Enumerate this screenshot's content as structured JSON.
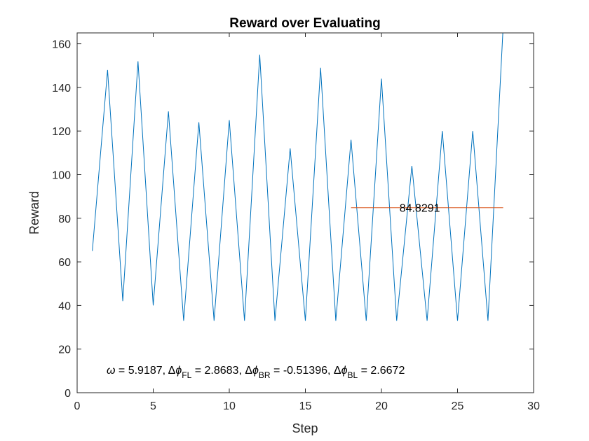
{
  "chart_data": {
    "type": "line",
    "title": "Reward over Evaluating",
    "xlabel": "Step",
    "ylabel": "Reward",
    "xlim": [
      0,
      30
    ],
    "ylim": [
      0,
      165
    ],
    "xticks": [
      0,
      5,
      10,
      15,
      20,
      25,
      30
    ],
    "yticks": [
      0,
      20,
      40,
      60,
      80,
      100,
      120,
      140,
      160
    ],
    "grid": false,
    "series": [
      {
        "color": "#0072BD",
        "x": [
          1,
          2,
          3,
          4,
          5,
          6,
          7,
          8,
          9,
          10,
          11,
          12,
          13,
          14,
          15,
          16,
          17,
          18,
          19,
          20,
          21,
          22,
          23,
          24,
          25,
          26,
          27,
          28
        ],
        "y": [
          65,
          148,
          42,
          152,
          40,
          129,
          33,
          124,
          33,
          125,
          33,
          155,
          33,
          112,
          33,
          149,
          33,
          116,
          33,
          144,
          33,
          104,
          33,
          120,
          33,
          120,
          33,
          168
        ]
      },
      {
        "color": "#D95319",
        "x": [
          18,
          28
        ],
        "y": [
          84.8291,
          84.8291
        ]
      }
    ],
    "annotations": {
      "mean_label": {
        "text": "84.8291",
        "x": 21,
        "y": 84.8291
      },
      "params": {
        "omega_symbol": "ω",
        "omega_value": " = 5.9187, ",
        "delta_symbol": "Δ",
        "phi_symbol": "ϕ",
        "fl_sub": "FL",
        "fl_value": " = 2.8683, ",
        "br_sub": "BR",
        "br_value": " = -0.51396, ",
        "bl_sub": "BL",
        "bl_value": " = 2.6672"
      }
    }
  }
}
